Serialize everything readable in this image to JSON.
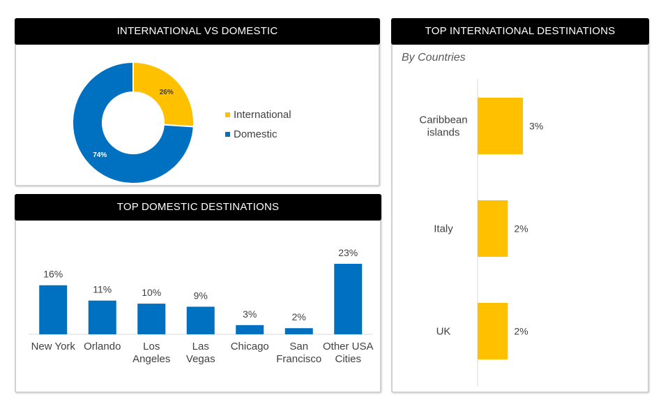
{
  "colors": {
    "accent": "#ffc000",
    "primary": "#0070c0",
    "header_bg": "#000000"
  },
  "panels": {
    "intl_vs_domestic": {
      "title": "INTERNATIONAL VS DOMESTIC"
    },
    "top_domestic": {
      "title": "TOP DOMESTIC DESTINATIONS"
    },
    "top_international": {
      "title": "TOP INTERNATIONAL DESTINATIONS",
      "subtitle": "By Countries"
    }
  },
  "chart_data": [
    {
      "type": "pie",
      "title": "INTERNATIONAL VS DOMESTIC",
      "donut": true,
      "categories": [
        "International",
        "Domestic"
      ],
      "values": [
        26,
        74
      ],
      "labels": [
        "26%",
        "74%"
      ],
      "colors": [
        "#ffc000",
        "#0070c0"
      ],
      "legend": "right"
    },
    {
      "type": "bar",
      "title": "TOP DOMESTIC DESTINATIONS",
      "orientation": "vertical",
      "categories": [
        "New York",
        "Orlando",
        "Los Angeles",
        "Las Vegas",
        "Chicago",
        "San Francisco",
        "Other USA Cities"
      ],
      "category_lines": [
        [
          "New York"
        ],
        [
          "Orlando"
        ],
        [
          "Los",
          "Angeles"
        ],
        [
          "Las",
          "Vegas"
        ],
        [
          "Chicago"
        ],
        [
          "San",
          "Francisco"
        ],
        [
          "Other USA",
          "Cities"
        ]
      ],
      "values": [
        16,
        11,
        10,
        9,
        3,
        2,
        23
      ],
      "labels": [
        "16%",
        "11%",
        "10%",
        "9%",
        "3%",
        "2%",
        "23%"
      ],
      "color": "#0070c0",
      "ylim": [
        0,
        23
      ],
      "grid": false
    },
    {
      "type": "bar",
      "title": "TOP INTERNATIONAL DESTINATIONS",
      "subtitle": "By Countries",
      "orientation": "horizontal",
      "categories": [
        "Caribbean islands",
        "Italy",
        "UK"
      ],
      "category_lines": [
        [
          "Caribbean",
          "islands"
        ],
        [
          "Italy"
        ],
        [
          "UK"
        ]
      ],
      "values": [
        3,
        2,
        2
      ],
      "labels": [
        "3%",
        "2%",
        "2%"
      ],
      "color": "#ffc000",
      "xlim": [
        0,
        3
      ],
      "grid": false
    }
  ]
}
